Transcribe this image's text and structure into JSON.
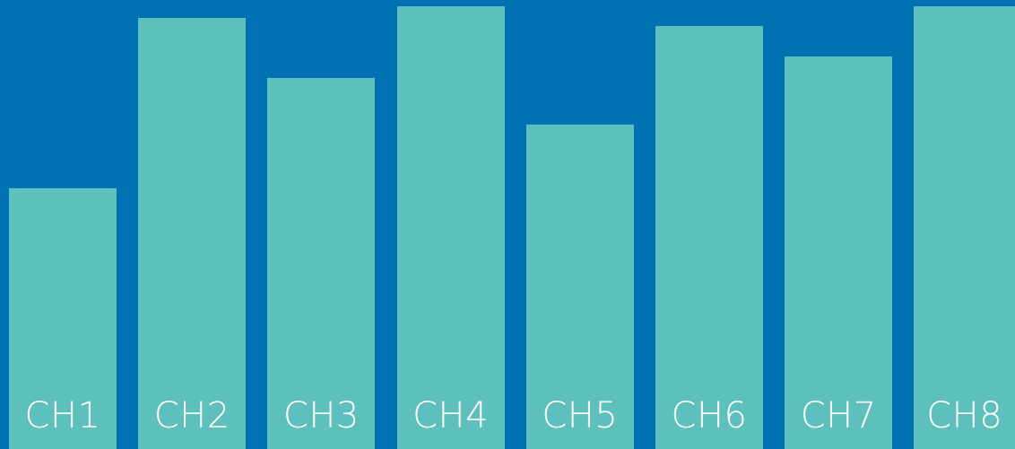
{
  "meter": {
    "background_color": "#0072b2",
    "bar_color": "#5dc0bd",
    "label_color": "#ffffff",
    "channels": [
      {
        "label": "CH1",
        "level": 0.58
      },
      {
        "label": "CH2",
        "level": 0.96
      },
      {
        "label": "CH3",
        "level": 0.826
      },
      {
        "label": "CH4",
        "level": 0.986
      },
      {
        "label": "CH5",
        "level": 0.723
      },
      {
        "label": "CH6",
        "level": 0.942
      },
      {
        "label": "CH7",
        "level": 0.874
      },
      {
        "label": "CH8",
        "level": 0.986
      }
    ]
  }
}
